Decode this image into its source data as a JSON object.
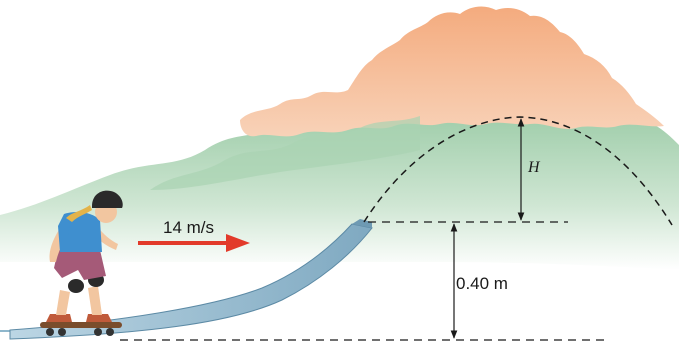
{
  "labels": {
    "speed": "14 m/s",
    "ramp_height": "0.40 m",
    "max_height": "H"
  },
  "colors": {
    "foliage_green": "#9dcca8",
    "foliage_peach": "#f3b48c",
    "ramp": "#8fb7cc",
    "velocity_arrow": "#e23a2a",
    "skater_shirt": "#3f8fcf",
    "skater_shorts": "#a55a78",
    "line": "#1a1a1a"
  },
  "icons": {
    "skater": "skateboarder-figure",
    "velocity": "right-arrow",
    "dimension": "double-headed-vertical-arrow"
  }
}
